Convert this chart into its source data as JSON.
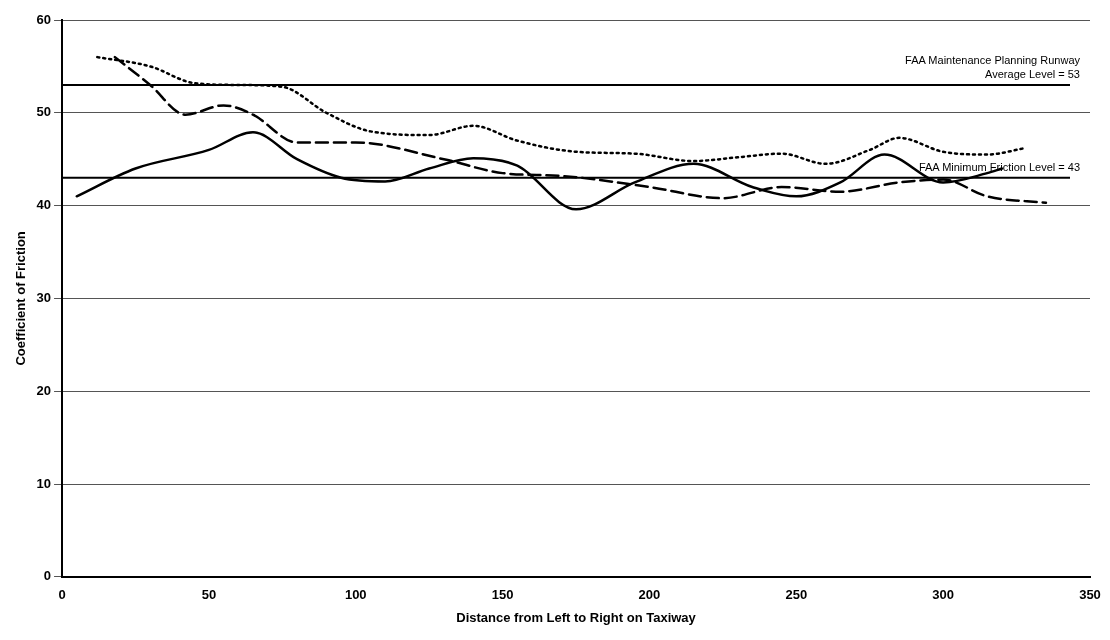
{
  "chart_data": {
    "type": "line",
    "xlabel": "Distance from Left to Right on Taxiway",
    "ylabel": "Coefficient of Friction",
    "xlim": [
      0,
      350
    ],
    "xticks": [
      0,
      50,
      100,
      150,
      200,
      250,
      300,
      350
    ],
    "ylim": [
      0,
      60
    ],
    "yticks": [
      0,
      10,
      20,
      30,
      40,
      50,
      60
    ],
    "grid": "y",
    "marker": "none",
    "ref_lines": [
      {
        "axis": "y",
        "value": 53,
        "label": "FAA Maintenance Planning Runway\nAverage Level = 53",
        "color": "#000000"
      },
      {
        "axis": "y",
        "value": 43,
        "label": "FAA Minimum Friction Level = 43",
        "color": "#000000"
      }
    ],
    "series": [
      {
        "color": "#000000",
        "line_style": "solid",
        "x": [
          5,
          25,
          50,
          65,
          80,
          95,
          110,
          125,
          140,
          155,
          175,
          195,
          215,
          235,
          250,
          265,
          280,
          300,
          315,
          320
        ],
        "values": [
          41,
          44,
          46,
          47.9,
          45,
          43,
          42.6,
          44,
          45.1,
          44.3,
          39.6,
          42.5,
          44.5,
          42,
          41,
          42.5,
          45.5,
          42.5,
          43.5,
          44
        ]
      },
      {
        "color": "#000000",
        "line_style": "dashed",
        "x": [
          18,
          30,
          42,
          55,
          65,
          80,
          100,
          130,
          150,
          170,
          200,
          225,
          245,
          265,
          285,
          300,
          315,
          335
        ],
        "values": [
          56,
          53,
          49.8,
          50.8,
          49.8,
          46.8,
          46.8,
          45,
          43.5,
          43.2,
          42,
          40.8,
          42,
          41.5,
          42.5,
          42.8,
          41,
          40.3
        ]
      },
      {
        "color": "#000000",
        "line_style": "dotted",
        "x": [
          12,
          30,
          45,
          60,
          75,
          90,
          105,
          125,
          140,
          155,
          175,
          195,
          215,
          230,
          245,
          260,
          275,
          285,
          300,
          315,
          328
        ],
        "values": [
          56,
          55,
          53.2,
          53,
          52.8,
          50,
          48,
          47.6,
          48.6,
          47,
          45.8,
          45.6,
          44.8,
          45.2,
          45.6,
          44.5,
          46,
          47.3,
          45.8,
          45.5,
          46.2
        ]
      }
    ]
  }
}
